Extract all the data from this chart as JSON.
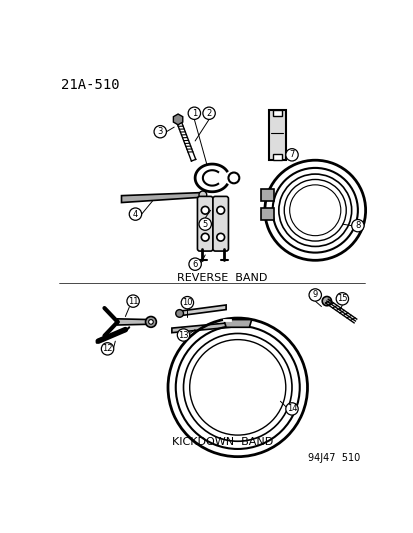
{
  "title": "21A-510",
  "bg_color": "#ffffff",
  "line_color": "#000000",
  "label_reverse": "REVERSE  BAND",
  "label_kickdown": "KICKDOWN  BAND",
  "watermark": "94J47  510",
  "fig_width": 4.14,
  "fig_height": 5.33,
  "dpi": 100
}
